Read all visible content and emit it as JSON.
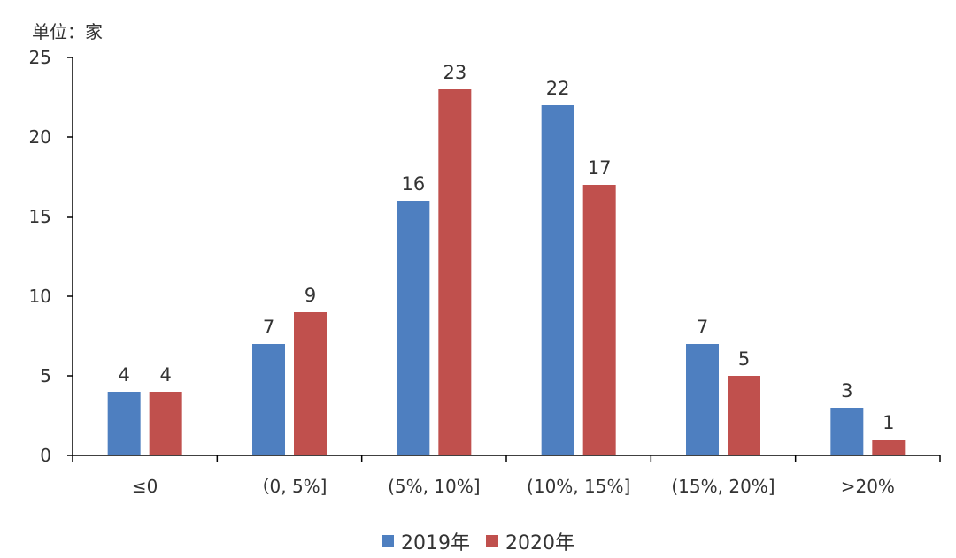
{
  "chart_data": {
    "type": "bar",
    "unit_label": "单位：家",
    "categories": [
      "≤0",
      "（0, 5%]",
      "(5%, 10%]",
      "(10%, 15%]",
      "(15%, 20%]",
      ">20%"
    ],
    "series": [
      {
        "name": "2019年",
        "color": "#4e7fc0",
        "values": [
          4,
          7,
          16,
          22,
          7,
          3
        ]
      },
      {
        "name": "2020年",
        "color": "#c0504d",
        "values": [
          4,
          9,
          23,
          17,
          5,
          1
        ]
      }
    ],
    "y_ticks": [
      "0",
      "5",
      "10",
      "15",
      "20",
      "25"
    ],
    "ylim": [
      0,
      25
    ],
    "grid": false,
    "legend_position": "bottom"
  }
}
